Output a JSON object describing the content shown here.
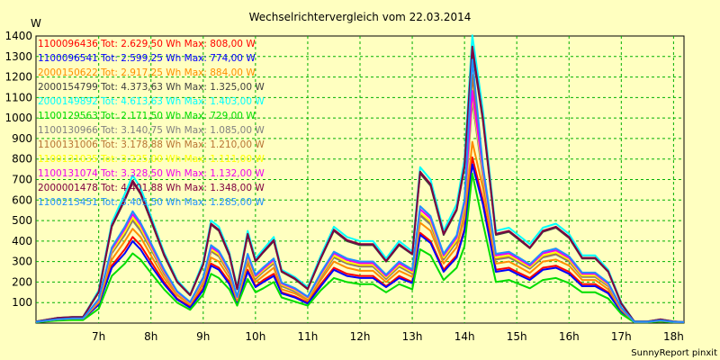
{
  "chart_data": {
    "type": "line",
    "title": "Wechselrichtervergleich vom 22.03.2014",
    "y_unit_label": "W",
    "credit": "SunnyReport pinxit",
    "ylim": [
      0,
      1400
    ],
    "yticks": [
      100,
      200,
      300,
      400,
      500,
      600,
      700,
      800,
      900,
      1000,
      1100,
      1200,
      1300,
      1400
    ],
    "x_ticks": [
      "7h",
      "8h",
      "9h",
      "10h",
      "11h",
      "12h",
      "13h",
      "14h",
      "15h",
      "16h",
      "17h",
      "18h"
    ],
    "x_tick_hours": [
      7,
      8,
      9,
      10,
      11,
      12,
      13,
      14,
      15,
      16,
      17,
      18
    ],
    "xlim_hours": [
      5.8,
      18.2
    ],
    "grid": true,
    "legend_position": "top-left",
    "x_hours": [
      5.8,
      6.2,
      6.5,
      6.7,
      7.0,
      7.25,
      7.5,
      7.65,
      7.8,
      8.0,
      8.25,
      8.5,
      8.75,
      9.0,
      9.15,
      9.3,
      9.5,
      9.65,
      9.85,
      10.0,
      10.15,
      10.35,
      10.5,
      10.75,
      11.0,
      11.25,
      11.5,
      11.75,
      12.0,
      12.25,
      12.5,
      12.75,
      13.0,
      13.15,
      13.35,
      13.6,
      13.85,
      14.0,
      14.15,
      14.35,
      14.6,
      14.85,
      15.0,
      15.25,
      15.5,
      15.75,
      16.0,
      16.25,
      16.5,
      16.75,
      17.0,
      17.25,
      17.5,
      17.75,
      18.0,
      18.2
    ],
    "series": [
      {
        "name": "1100096436 Tot: 2.629,50 Wh Max: 808,00 W",
        "color": "#ff0000",
        "values": [
          5,
          15,
          20,
          20,
          90,
          280,
          360,
          420,
          380,
          300,
          200,
          120,
          80,
          170,
          290,
          270,
          200,
          100,
          260,
          180,
          210,
          240,
          150,
          130,
          100,
          190,
          270,
          240,
          230,
          230,
          180,
          230,
          200,
          440,
          400,
          260,
          330,
          460,
          808,
          600,
          260,
          270,
          250,
          220,
          270,
          280,
          250,
          190,
          190,
          150,
          60,
          5,
          5,
          10,
          5,
          5
        ]
      },
      {
        "name": "1100096541 Tot: 2.599,25 Wh Max: 774,00 W",
        "color": "#0000ff",
        "values": [
          5,
          15,
          20,
          20,
          90,
          270,
          340,
          400,
          360,
          280,
          190,
          115,
          75,
          160,
          280,
          260,
          190,
          95,
          250,
          175,
          200,
          230,
          145,
          125,
          95,
          180,
          260,
          230,
          220,
          220,
          175,
          220,
          195,
          430,
          390,
          250,
          320,
          450,
          774,
          580,
          250,
          260,
          240,
          210,
          260,
          270,
          240,
          180,
          180,
          145,
          55,
          5,
          5,
          10,
          5,
          5
        ]
      },
      {
        "name": "2000150622 Tot: 2.917,25 Wh Max: 884,00 W",
        "color": "#ff8c00",
        "values": [
          5,
          18,
          22,
          22,
          100,
          310,
          400,
          460,
          420,
          330,
          220,
          135,
          90,
          190,
          320,
          300,
          220,
          110,
          290,
          200,
          230,
          270,
          165,
          145,
          110,
          210,
          300,
          270,
          255,
          255,
          200,
          255,
          225,
          490,
          450,
          290,
          370,
          510,
          884,
          660,
          290,
          300,
          280,
          245,
          300,
          310,
          280,
          210,
          210,
          165,
          65,
          5,
          5,
          12,
          5,
          5
        ]
      },
      {
        "name": "2000154799 Tot: 4.373,63 Wh Max: 1.325,00 W",
        "color": "#404040",
        "values": [
          8,
          25,
          30,
          30,
          150,
          470,
          600,
          690,
          630,
          500,
          330,
          200,
          135,
          285,
          480,
          450,
          330,
          165,
          430,
          300,
          345,
          400,
          250,
          215,
          165,
          315,
          450,
          400,
          380,
          380,
          300,
          380,
          335,
          730,
          670,
          430,
          550,
          760,
          1325,
          990,
          430,
          445,
          415,
          365,
          445,
          465,
          415,
          315,
          315,
          250,
          95,
          8,
          8,
          18,
          8,
          5
        ]
      },
      {
        "name": "2000149892 Tot: 4.613,63 Wh Max: 1.403,00 W",
        "color": "#00ffff",
        "values": [
          8,
          25,
          30,
          30,
          160,
          490,
          630,
          720,
          660,
          520,
          345,
          210,
          140,
          300,
          500,
          470,
          345,
          175,
          450,
          315,
          360,
          420,
          260,
          225,
          175,
          330,
          470,
          420,
          400,
          400,
          315,
          400,
          350,
          760,
          700,
          450,
          580,
          800,
          1403,
          1040,
          450,
          465,
          435,
          385,
          465,
          485,
          435,
          330,
          330,
          260,
          100,
          8,
          8,
          18,
          8,
          5
        ]
      },
      {
        "name": "1100129563 Tot: 2.171,50 Wh Max: 729,00 W",
        "color": "#00dd00",
        "values": [
          4,
          12,
          15,
          15,
          70,
          230,
          290,
          340,
          310,
          245,
          165,
          100,
          65,
          140,
          240,
          220,
          165,
          85,
          215,
          150,
          170,
          200,
          125,
          105,
          85,
          160,
          220,
          200,
          190,
          190,
          150,
          190,
          165,
          360,
          330,
          210,
          270,
          375,
          729,
          490,
          200,
          210,
          195,
          170,
          210,
          220,
          195,
          150,
          150,
          120,
          45,
          4,
          4,
          8,
          4,
          4
        ]
      },
      {
        "name": "1100130966 Tot: 3.140,75 Wh Max: 1.085,00 W",
        "color": "#808080",
        "values": [
          6,
          18,
          22,
          22,
          110,
          340,
          430,
          500,
          450,
          360,
          240,
          145,
          95,
          205,
          350,
          325,
          240,
          120,
          310,
          215,
          250,
          290,
          180,
          155,
          120,
          225,
          320,
          290,
          275,
          275,
          215,
          275,
          240,
          525,
          480,
          310,
          395,
          550,
          1085,
          710,
          310,
          320,
          300,
          265,
          320,
          335,
          300,
          225,
          225,
          180,
          70,
          6,
          6,
          12,
          6,
          5
        ]
      },
      {
        "name": "1100131006 Tot: 3.178,88 Wh Max: 1.210,00 W",
        "color": "#b87333",
        "values": [
          6,
          18,
          22,
          22,
          110,
          345,
          440,
          510,
          460,
          365,
          245,
          145,
          95,
          210,
          355,
          330,
          245,
          120,
          315,
          220,
          255,
          295,
          185,
          160,
          120,
          230,
          325,
          295,
          280,
          280,
          220,
          280,
          245,
          535,
          490,
          315,
          400,
          560,
          1210,
          720,
          315,
          325,
          305,
          270,
          325,
          340,
          305,
          230,
          230,
          185,
          70,
          6,
          6,
          12,
          6,
          5
        ]
      },
      {
        "name": "1100131035 Tot: 3.225,00 Wh Max: 1.111,00 W",
        "color": "#ffff00",
        "values": [
          6,
          18,
          22,
          22,
          112,
          350,
          445,
          515,
          465,
          370,
          250,
          148,
          97,
          212,
          360,
          335,
          250,
          122,
          320,
          223,
          258,
          300,
          188,
          162,
          122,
          232,
          330,
          298,
          284,
          284,
          223,
          284,
          248,
          540,
          495,
          320,
          405,
          568,
          1111,
          730,
          320,
          330,
          310,
          273,
          330,
          345,
          310,
          232,
          232,
          187,
          72,
          6,
          6,
          12,
          6,
          5
        ]
      },
      {
        "name": "1100131074 Tot: 3.328,50 Wh Max: 1.132,00 W",
        "color": "#ee00ee",
        "values": [
          6,
          19,
          23,
          23,
          115,
          360,
          460,
          530,
          480,
          380,
          255,
          152,
          100,
          218,
          370,
          345,
          255,
          126,
          330,
          230,
          265,
          308,
          193,
          167,
          126,
          240,
          340,
          308,
          292,
          292,
          230,
          292,
          256,
          555,
          510,
          330,
          418,
          585,
          1132,
          750,
          330,
          340,
          318,
          280,
          340,
          355,
          318,
          240,
          240,
          192,
          74,
          6,
          6,
          13,
          6,
          5
        ]
      },
      {
        "name": "2000001478 Tot: 4.401,88 Wh Max: 1.348,00 W",
        "color": "#800040",
        "values": [
          8,
          25,
          30,
          30,
          152,
          475,
          605,
          695,
          635,
          505,
          335,
          202,
          137,
          288,
          485,
          455,
          335,
          167,
          435,
          303,
          348,
          405,
          253,
          218,
          167,
          318,
          455,
          405,
          385,
          385,
          303,
          385,
          338,
          738,
          678,
          435,
          555,
          768,
          1348,
          1000,
          435,
          450,
          420,
          368,
          450,
          470,
          420,
          318,
          318,
          252,
          96,
          8,
          8,
          18,
          8,
          5
        ]
      },
      {
        "name": "1100213451 Tot: 3.405,50 Wh Max: 1.285,00 W",
        "color": "#1e90ff",
        "values": [
          6,
          19,
          23,
          23,
          118,
          368,
          470,
          545,
          490,
          390,
          262,
          156,
          103,
          224,
          380,
          352,
          262,
          129,
          338,
          236,
          272,
          315,
          198,
          171,
          129,
          246,
          348,
          315,
          300,
          300,
          236,
          300,
          262,
          570,
          522,
          338,
          428,
          600,
          1285,
          770,
          338,
          348,
          326,
          287,
          348,
          364,
          326,
          246,
          246,
          197,
          76,
          6,
          6,
          13,
          6,
          5
        ]
      }
    ]
  }
}
